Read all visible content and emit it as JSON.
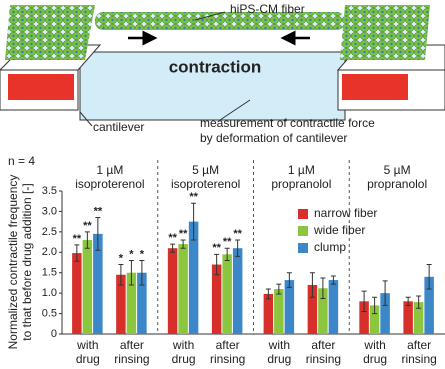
{
  "diagram": {
    "labels": {
      "fiber": "hiPS-CM fiber",
      "contraction": "contraction",
      "cantilever": "cantilever",
      "measurement": [
        "measurement of contractile force",
        "by deformation of cantilever"
      ]
    }
  },
  "chart_data": {
    "type": "bar",
    "annotation": "n = 4",
    "ylabel": [
      "Normalized contractile frequency",
      "to that before drug addition [-]"
    ],
    "groups": [
      {
        "dose": "1 µM",
        "drug": "isoproterenol"
      },
      {
        "dose": "5 µM",
        "drug": "isoproterenol"
      },
      {
        "dose": "1 µM",
        "drug": "propranolol"
      },
      {
        "dose": "5 µM",
        "drug": "propranolol"
      }
    ],
    "categories": [
      [
        "with",
        "drug"
      ],
      [
        "after",
        "rinsing"
      ],
      [
        "with",
        "drug"
      ],
      [
        "after",
        "rinsing"
      ],
      [
        "with",
        "drug"
      ],
      [
        "after",
        "rinsing"
      ],
      [
        "with",
        "drug"
      ],
      [
        "after",
        "rinsing"
      ]
    ],
    "series": [
      {
        "name": "narrow fiber",
        "color": "#d7302a",
        "values": [
          1.98,
          1.45,
          2.1,
          1.7,
          0.98,
          1.2,
          0.8,
          0.8
        ],
        "errors": [
          0.2,
          0.25,
          0.1,
          0.25,
          0.12,
          0.3,
          0.25,
          0.1
        ],
        "significance": [
          "**",
          "*",
          "**",
          "**",
          null,
          null,
          null,
          null
        ]
      },
      {
        "name": "wide fiber",
        "color": "#8cc63f",
        "values": [
          2.3,
          1.5,
          2.2,
          1.95,
          1.1,
          1.12,
          0.7,
          0.78
        ],
        "errors": [
          0.2,
          0.3,
          0.1,
          0.15,
          0.12,
          0.25,
          0.2,
          0.15
        ],
        "significance": [
          "**",
          "*",
          "**",
          "**",
          null,
          null,
          null,
          null
        ]
      },
      {
        "name": "clump",
        "color": "#3b87c8",
        "values": [
          2.45,
          1.5,
          2.75,
          2.1,
          1.32,
          1.32,
          1.0,
          1.4
        ],
        "errors": [
          0.4,
          0.3,
          0.45,
          0.2,
          0.18,
          0.1,
          0.3,
          0.3
        ],
        "significance": [
          "**",
          "*",
          "**",
          "**",
          null,
          null,
          null,
          null
        ]
      }
    ],
    "ylim": [
      0,
      3.5
    ],
    "yticks": [
      0,
      {
        "value": 0.5,
        "label": "0.5"
      },
      {
        "value": 1,
        "label": "1.0"
      },
      {
        "value": 1.5,
        "label": "1.5"
      },
      {
        "value": 2,
        "label": "2.0"
      },
      {
        "value": 2.5,
        "label": "2.5"
      },
      {
        "value": 3,
        "label": "3.0"
      },
      {
        "value": 3.5,
        "label": "3.5"
      }
    ],
    "legend": "upper right"
  }
}
